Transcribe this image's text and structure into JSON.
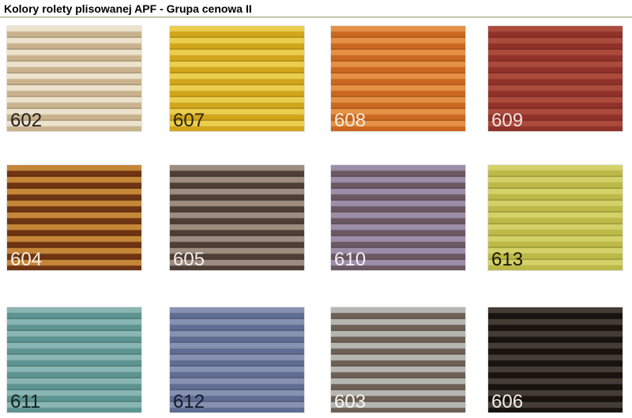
{
  "page": {
    "title": "Kolory rolety plisowanej APF - Grupa cenowa II"
  },
  "divider_color": "#99a483",
  "swatches": [
    {
      "code": "602",
      "light": "#ede2cb",
      "dark": "#c9b28c",
      "label_color": "#1f1f1f"
    },
    {
      "code": "607",
      "light": "#ebce4d",
      "dark": "#d2a51a",
      "label_color": "#2b2410"
    },
    {
      "code": "608",
      "light": "#e59044",
      "dark": "#cc671f",
      "label_color": "#f6ecd8"
    },
    {
      "code": "609",
      "light": "#ac4a3c",
      "dark": "#90322a",
      "label_color": "#f3e3de"
    },
    {
      "code": "604",
      "light": "#c68638",
      "dark": "#6f3412",
      "label_color": "#f8f0e4"
    },
    {
      "code": "605",
      "light": "#9d8c7f",
      "dark": "#4e3e36",
      "label_color": "#f3efec"
    },
    {
      "code": "610",
      "light": "#9c8da9",
      "dark": "#6c5862",
      "label_color": "#f2eef4"
    },
    {
      "code": "613",
      "light": "#d4d168",
      "dark": "#bcb946",
      "label_color": "#151505"
    },
    {
      "code": "611",
      "light": "#89b6b2",
      "dark": "#5c9492",
      "label_color": "#12211f"
    },
    {
      "code": "612",
      "light": "#8792b2",
      "dark": "#5f6c93",
      "label_color": "#121a2d"
    },
    {
      "code": "603",
      "light": "#b5b6b2",
      "dark": "#6e6055",
      "label_color": "#f5f5f3"
    },
    {
      "code": "606",
      "light": "#453d35",
      "dark": "#18130f",
      "label_color": "#efece8"
    }
  ]
}
